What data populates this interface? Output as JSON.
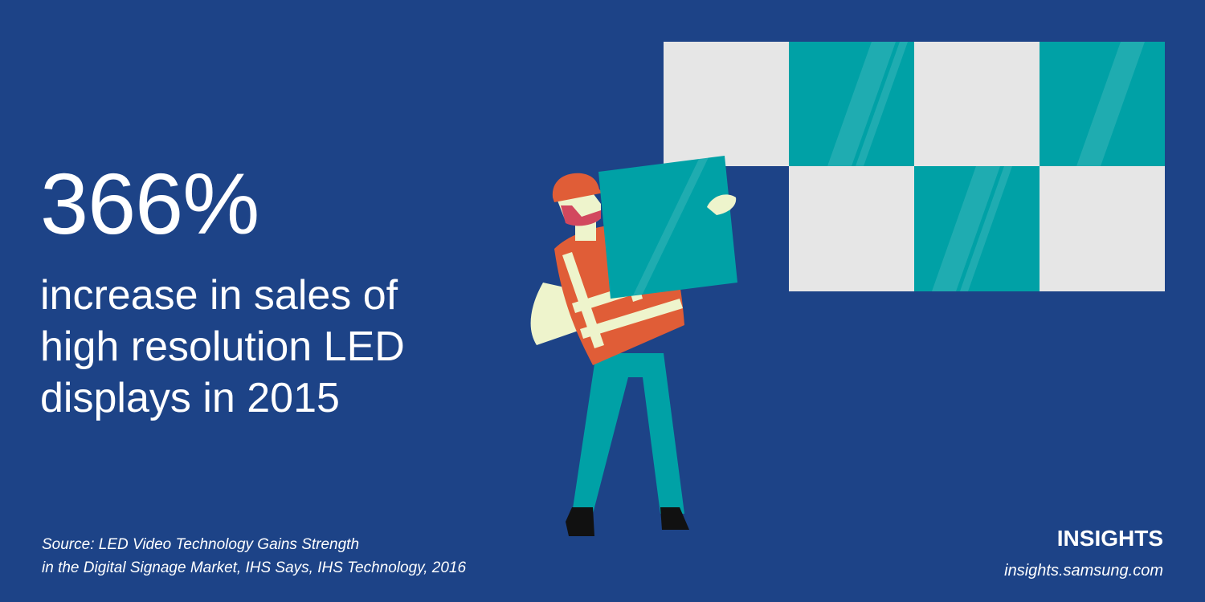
{
  "headline": {
    "stat": "366%",
    "lines": [
      "increase in sales of",
      "high resolution LED",
      "displays in 2015"
    ]
  },
  "source": {
    "lines": [
      "Source: LED Video Technology Gains Strength",
      "in the Digital Signage Market, IHS Says, IHS Technology, 2016"
    ]
  },
  "brand": {
    "name": "INSIGHTS",
    "url": "insights.samsung.com"
  },
  "colors": {
    "background": "#1d4387",
    "panel_teal": "#00a1a6",
    "panel_light": "#e6e6e6",
    "vest": "#e05d37",
    "pants": "#00a1a6",
    "skin": "#eef4cc"
  },
  "illustration": {
    "wall_grid": [
      [
        "light",
        "teal",
        "light",
        "teal"
      ],
      [
        "empty",
        "light",
        "teal",
        "light"
      ]
    ]
  }
}
